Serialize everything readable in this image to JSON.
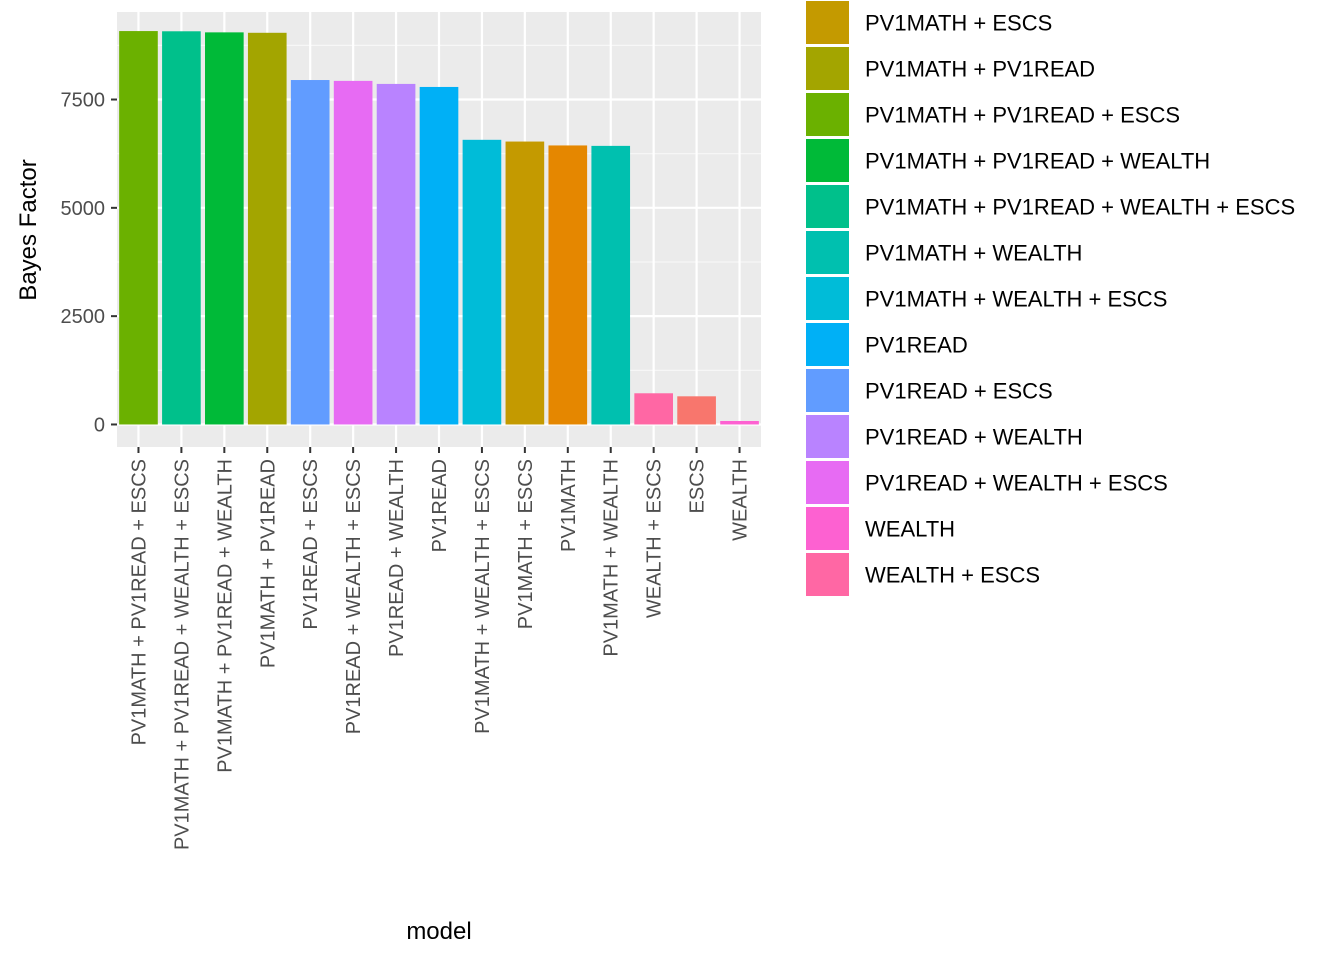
{
  "chart_data": {
    "type": "bar",
    "xlabel": "model",
    "ylabel": "Bayes Factor",
    "ylim": [
      0,
      9400
    ],
    "yticks": [
      0,
      2500,
      5000,
      7500
    ],
    "ytick_labels": [
      "0",
      "2500",
      "5000",
      "7500"
    ],
    "grid": true,
    "legend_position": "right",
    "categories": [
      "PV1MATH + PV1READ + ESCS",
      "PV1MATH + PV1READ + WEALTH + ESCS",
      "PV1MATH + PV1READ + WEALTH",
      "PV1MATH + PV1READ",
      "PV1READ + ESCS",
      "PV1READ + WEALTH + ESCS",
      "PV1READ + WEALTH",
      "PV1READ",
      "PV1MATH + WEALTH + ESCS",
      "PV1MATH + ESCS",
      "PV1MATH",
      "PV1MATH + WEALTH",
      "WEALTH + ESCS",
      "ESCS",
      "WEALTH"
    ],
    "values": [
      9080,
      9075,
      9050,
      9040,
      7950,
      7930,
      7860,
      7790,
      6570,
      6530,
      6440,
      6430,
      720,
      650,
      80
    ],
    "bar_colors": [
      "#6BB100",
      "#00C08B",
      "#00BA38",
      "#A3A500",
      "#619CFF",
      "#E76BF3",
      "#B983FF",
      "#00B0F6",
      "#00BCD8",
      "#C49A00",
      "#E58700",
      "#00C0AF",
      "#FF67A4",
      "#F8766D",
      "#FD61D1"
    ],
    "legend": [
      {
        "label": "PV1MATH + ESCS",
        "color": "#C49A00"
      },
      {
        "label": "PV1MATH + PV1READ",
        "color": "#A3A500"
      },
      {
        "label": "PV1MATH + PV1READ + ESCS",
        "color": "#6BB100"
      },
      {
        "label": "PV1MATH + PV1READ + WEALTH",
        "color": "#00BA38"
      },
      {
        "label": "PV1MATH + PV1READ + WEALTH + ESCS",
        "color": "#00C08B"
      },
      {
        "label": "PV1MATH + WEALTH",
        "color": "#00C0AF"
      },
      {
        "label": "PV1MATH + WEALTH + ESCS",
        "color": "#00BCD8"
      },
      {
        "label": "PV1READ",
        "color": "#00B0F6"
      },
      {
        "label": "PV1READ + ESCS",
        "color": "#619CFF"
      },
      {
        "label": "PV1READ + WEALTH",
        "color": "#B983FF"
      },
      {
        "label": "PV1READ + WEALTH + ESCS",
        "color": "#E76BF3"
      },
      {
        "label": "WEALTH",
        "color": "#FD61D1"
      },
      {
        "label": "WEALTH + ESCS",
        "color": "#FF67A4"
      }
    ]
  }
}
